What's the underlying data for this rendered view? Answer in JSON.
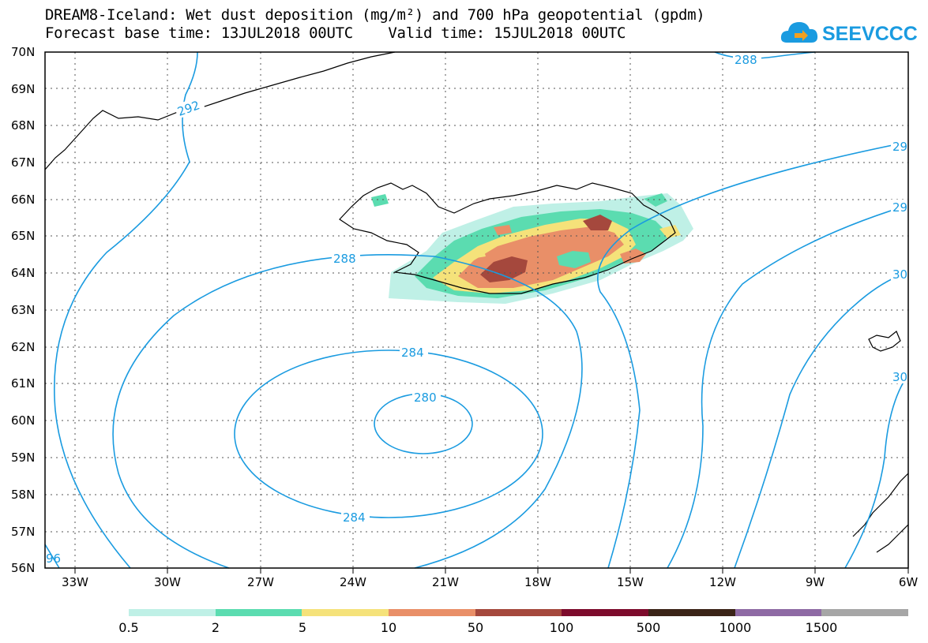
{
  "header": {
    "title_line1": "DREAM8-Iceland: Wet dust deposition (mg/m²) and 700 hPa geopotential (gpdm)",
    "title_line2": "Forecast base time: 13JUL2018 00UTC    Valid time: 15JUL2018 00UTC",
    "logo_text": "SEEVCCC"
  },
  "map": {
    "lat_labels": [
      "70N",
      "69N",
      "68N",
      "67N",
      "66N",
      "65N",
      "64N",
      "63N",
      "62N",
      "61N",
      "60N",
      "59N",
      "58N",
      "57N",
      "56N"
    ],
    "lon_labels": [
      "33W",
      "30W",
      "27W",
      "24W",
      "21W",
      "18W",
      "15W",
      "12W",
      "9W",
      "6W"
    ],
    "contour_labels": [
      "288",
      "292",
      "288",
      "284",
      "280",
      "284",
      "29",
      "29",
      "30",
      "30",
      "96"
    ]
  },
  "legend": {
    "colors": [
      "#bff0e6",
      "#5bdcb0",
      "#f5e27a",
      "#e98f68",
      "#a5483d",
      "#7d0b2c",
      "#3b2418",
      "#8e6aa4",
      "#a6a6a6"
    ],
    "labels": [
      "0.5",
      "2",
      "5",
      "10",
      "50",
      "100",
      "500",
      "1000",
      "1500"
    ]
  }
}
